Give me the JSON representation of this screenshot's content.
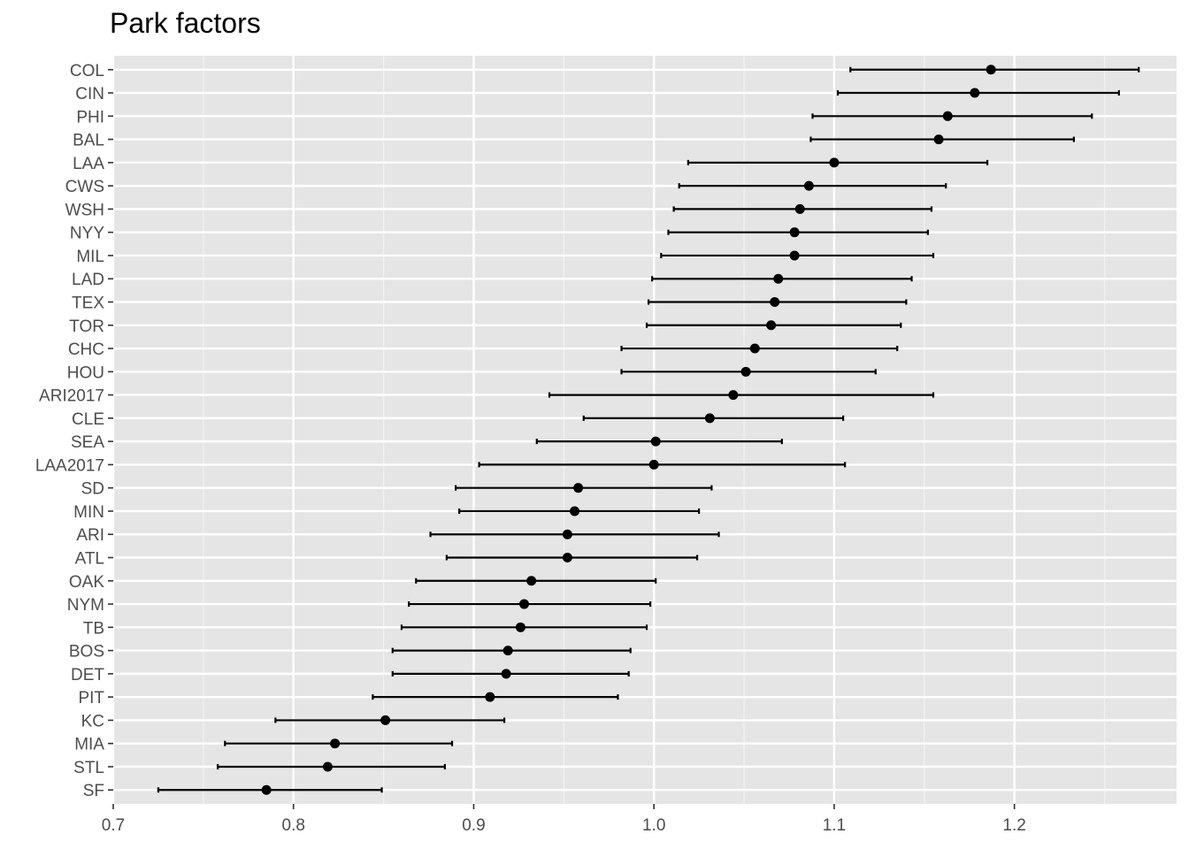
{
  "chart_data": {
    "type": "scatter",
    "subtype": "point-with-horizontal-errorbars",
    "title": "Park factors",
    "xlabel": "",
    "ylabel": "",
    "xlim": [
      0.7,
      1.29
    ],
    "x_ticks": [
      0.7,
      0.8,
      0.9,
      1.0,
      1.1,
      1.2
    ],
    "x_tick_labels": [
      "0.7",
      "0.8",
      "0.9",
      "1.0",
      "1.1",
      "1.2"
    ],
    "grid": true,
    "background": "#e5e5e5",
    "point_color": "#000000",
    "categories": [
      "COL",
      "CIN",
      "PHI",
      "BAL",
      "LAA",
      "CWS",
      "WSH",
      "NYY",
      "MIL",
      "LAD",
      "TEX",
      "TOR",
      "CHC",
      "HOU",
      "ARI2017",
      "CLE",
      "SEA",
      "LAA2017",
      "SD",
      "MIN",
      "ARI",
      "ATL",
      "OAK",
      "NYM",
      "TB",
      "BOS",
      "DET",
      "PIT",
      "KC",
      "MIA",
      "STL",
      "SF"
    ],
    "values": [
      1.187,
      1.178,
      1.163,
      1.158,
      1.1,
      1.086,
      1.081,
      1.078,
      1.078,
      1.069,
      1.067,
      1.065,
      1.056,
      1.051,
      1.044,
      1.031,
      1.001,
      1.0,
      0.958,
      0.956,
      0.952,
      0.952,
      0.932,
      0.928,
      0.926,
      0.919,
      0.918,
      0.909,
      0.851,
      0.823,
      0.819,
      0.785
    ],
    "lower": [
      1.109,
      1.102,
      1.088,
      1.087,
      1.019,
      1.014,
      1.011,
      1.008,
      1.004,
      0.999,
      0.997,
      0.996,
      0.982,
      0.982,
      0.942,
      0.961,
      0.935,
      0.903,
      0.89,
      0.892,
      0.876,
      0.885,
      0.868,
      0.864,
      0.86,
      0.855,
      0.855,
      0.844,
      0.79,
      0.762,
      0.758,
      0.725
    ],
    "upper": [
      1.269,
      1.258,
      1.243,
      1.233,
      1.185,
      1.162,
      1.154,
      1.152,
      1.155,
      1.143,
      1.14,
      1.137,
      1.135,
      1.123,
      1.155,
      1.105,
      1.071,
      1.106,
      1.032,
      1.025,
      1.036,
      1.024,
      1.001,
      0.998,
      0.996,
      0.987,
      0.986,
      0.98,
      0.917,
      0.888,
      0.884,
      0.849
    ]
  }
}
